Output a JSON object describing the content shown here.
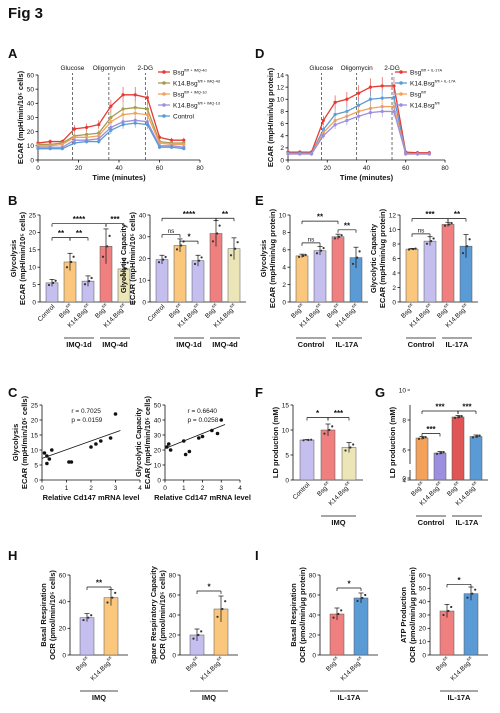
{
  "figure_title": "Fig 3",
  "colors": {
    "red": "#e53935",
    "orange": "#f4a259",
    "olive": "#a39b4f",
    "purple": "#9d8fe0",
    "blue": "#5b9bd5",
    "salmon": "#f08080",
    "khaki": "#ebe5b8",
    "lilac": "#c5bff0",
    "peach": "#fbc77c",
    "darkred": "#e05555",
    "gray": "#9a9a9a",
    "grayblue": "#a8a3c8"
  },
  "chart_data": [
    {
      "id": "A",
      "panel": "A",
      "type": "line",
      "ylabel": "ECAR (mpH/min/10⁵ cells)",
      "xlabel": "Time (minutes)",
      "x": [
        0,
        6,
        12,
        18,
        24,
        30,
        36,
        42,
        48,
        54,
        60,
        66,
        72
      ],
      "xticks": [
        "0",
        "20",
        "40",
        "60",
        "80"
      ],
      "yticks": [
        "0",
        "10",
        "20",
        "30",
        "40",
        "50",
        "60"
      ],
      "xlim": [
        0,
        80
      ],
      "ylim": [
        0,
        60
      ],
      "vlines": [
        {
          "x": 17,
          "label": "Glucose"
        },
        {
          "x": 35,
          "label": "Oligomycin"
        },
        {
          "x": 53,
          "label": "2-DG"
        }
      ],
      "series": [
        {
          "name": "Bsg^fl/fl + IMQ-4d",
          "color": "#e53935",
          "values": [
            12,
            13,
            13,
            22,
            23,
            25,
            38,
            46,
            46,
            44,
            16,
            14,
            14
          ]
        },
        {
          "name": "K14.Bsg^fl/fl + IMQ-4d",
          "color": "#a39b4f",
          "values": [
            11,
            11,
            12,
            17,
            18,
            19,
            30,
            36,
            37,
            36,
            13,
            12,
            12
          ]
        },
        {
          "name": "Bsg^fl/fl + IMQ-1d",
          "color": "#f4a259",
          "values": [
            10,
            10,
            11,
            16,
            16,
            17,
            27,
            32,
            33,
            32,
            12,
            11,
            11
          ]
        },
        {
          "name": "K14.Bsg^fl/fl + IMQ-1d",
          "color": "#9d8fe0",
          "values": [
            9,
            9,
            9,
            14,
            14,
            15,
            23,
            27,
            28,
            27,
            10,
            10,
            9
          ]
        },
        {
          "name": "Control",
          "color": "#5b9bd5",
          "values": [
            8,
            8,
            8,
            12,
            13,
            13,
            21,
            25,
            26,
            25,
            9,
            9,
            8
          ]
        }
      ]
    },
    {
      "id": "D",
      "panel": "D",
      "type": "line",
      "ylabel": "ECAR (mpH/min/ug protein)",
      "xlabel": "Time (minutes)",
      "x": [
        0,
        6,
        12,
        18,
        24,
        30,
        36,
        42,
        48,
        54,
        60,
        66,
        72
      ],
      "xticks": [
        "0",
        "20",
        "40",
        "60",
        "80"
      ],
      "yticks": [
        "0",
        "2",
        "4",
        "6",
        "8",
        "10",
        "12",
        "14"
      ],
      "xlim": [
        0,
        80
      ],
      "ylim": [
        0,
        14
      ],
      "vlines": [
        {
          "x": 17,
          "label": "Glucose"
        },
        {
          "x": 35,
          "label": "Oligomycin"
        },
        {
          "x": 53,
          "label": "2-DG"
        }
      ],
      "series": [
        {
          "name": "Bsg^fl/fl + IL-17A",
          "color": "#e53935",
          "values": [
            1.3,
            1.3,
            1.3,
            6.5,
            9.5,
            10,
            11,
            12,
            12.2,
            12.2,
            1.3,
            1.2,
            1.2
          ]
        },
        {
          "name": "K14.Bsg^fl/fl + IL-17A",
          "color": "#5b9bd5",
          "values": [
            1.1,
            1.1,
            1.1,
            5,
            7.5,
            8,
            9,
            10,
            10.2,
            10.3,
            1.1,
            1,
            1
          ]
        },
        {
          "name": "Bsg^fl/fl",
          "color": "#f4a259",
          "values": [
            1,
            1,
            1,
            4.5,
            6.5,
            7.2,
            8,
            8.5,
            8.8,
            8.8,
            1,
            1,
            1
          ]
        },
        {
          "name": "K14.Bsg^fl/fl",
          "color": "#9d8fe0",
          "values": [
            1,
            1,
            1,
            4,
            5.8,
            6.5,
            7.2,
            7.8,
            8,
            8,
            1,
            1,
            1
          ]
        }
      ]
    },
    {
      "id": "B1",
      "panel": "B",
      "type": "bar",
      "ylabel": "Glycolysis",
      "ylabel2": "ECAR (mpH/min/10⁵ cells)",
      "categories": [
        "Control",
        "Bsg^fl/fl",
        "K14.Bsg^fl/fl",
        "Bsg^fl/fl",
        "K14.Bsg^fl/fl"
      ],
      "values": [
        5.5,
        11.5,
        6,
        16,
        9.5
      ],
      "errors": [
        1,
        2.5,
        1.5,
        5,
        3
      ],
      "colors": [
        "#c5bff0",
        "#fbc77c",
        "#c5bff0",
        "#f08080",
        "#ebe5b8"
      ],
      "yticks": [
        "0",
        "5",
        "10",
        "15",
        "20",
        "25"
      ],
      "ylim": [
        0,
        25
      ],
      "groups": [
        {
          "label": "IMQ-1d",
          "from": 1,
          "to": 2
        },
        {
          "label": "IMQ-4d",
          "from": 3,
          "to": 4
        }
      ],
      "sig": [
        {
          "from": 0,
          "to": 3,
          "label": "****",
          "level": 22.5
        },
        {
          "from": 3,
          "to": 4,
          "label": "***",
          "level": 22.5
        },
        {
          "from": 0,
          "to": 1,
          "label": "**",
          "level": 18.5
        },
        {
          "from": 1,
          "to": 2,
          "label": "**",
          "level": 18.5
        }
      ]
    },
    {
      "id": "B2",
      "panel": "B",
      "type": "bar",
      "ylabel": "Glycolytic Capacity",
      "ylabel2": "ECAR (mpH/min/10⁵ cells)",
      "categories": [
        "Control",
        "Bsg^fl/fl",
        "K14.Bsg^fl/fl",
        "Bsg^fl/fl",
        "K14.Bsg^fl/fl"
      ],
      "values": [
        19.5,
        26,
        19,
        31.5,
        24.5
      ],
      "errors": [
        2,
        3,
        2.5,
        6,
        5
      ],
      "colors": [
        "#c5bff0",
        "#fbc77c",
        "#c5bff0",
        "#f08080",
        "#ebe5b8"
      ],
      "yticks": [
        "0",
        "10",
        "20",
        "30",
        "40"
      ],
      "ylim": [
        0,
        40
      ],
      "groups": [
        {
          "label": "IMQ-1d",
          "from": 1,
          "to": 2
        },
        {
          "label": "IMQ-4d",
          "from": 3,
          "to": 4
        }
      ],
      "sig": [
        {
          "from": 0,
          "to": 3,
          "label": "****",
          "level": 38.5
        },
        {
          "from": 3,
          "to": 4,
          "label": "**",
          "level": 38.5
        },
        {
          "from": 0,
          "to": 1,
          "label": "ns",
          "level": 31
        },
        {
          "from": 1,
          "to": 2,
          "label": "*",
          "level": 28
        }
      ]
    },
    {
      "id": "E1",
      "panel": "E",
      "type": "bar",
      "ylabel": "Glycolysis",
      "ylabel2": "ECAR (mpH/min/ug protein)",
      "categories": [
        "Bsg^fl/fl",
        "K14.Bsg^fl/fl",
        "Bsg^fl/fl",
        "K14.Bsg^fl/fl"
      ],
      "values": [
        5.3,
        5.9,
        7.5,
        5.1
      ],
      "errors": [
        0.2,
        0.5,
        0.3,
        1.2
      ],
      "colors": [
        "#fbc77c",
        "#c5bff0",
        "#f08080",
        "#5b9bd5"
      ],
      "yticks": [
        "0",
        "2",
        "4",
        "6",
        "8",
        "10"
      ],
      "ylim": [
        0,
        10
      ],
      "groups": [
        {
          "label": "Control",
          "from": 0,
          "to": 1
        },
        {
          "label": "IL-17A",
          "from": 2,
          "to": 3
        }
      ],
      "sig": [
        {
          "from": 0,
          "to": 2,
          "label": "**",
          "level": 9.3
        },
        {
          "from": 2,
          "to": 3,
          "label": "**",
          "level": 8.3
        },
        {
          "from": 0,
          "to": 1,
          "label": "ns",
          "level": 6.8
        }
      ]
    },
    {
      "id": "E2",
      "panel": "E",
      "type": "bar",
      "ylabel": "Glycolytic Capacity",
      "ylabel2": "ECAR (mpH/min/ug protein)",
      "categories": [
        "Bsg^fl/fl",
        "K14.Bsg^fl/fl",
        "Bsg^fl/fl",
        "K14.Bsg^fl/fl"
      ],
      "values": [
        7.3,
        8.4,
        10.7,
        7.7
      ],
      "errors": [
        0.1,
        0.6,
        0.3,
        1.6
      ],
      "colors": [
        "#fbc77c",
        "#c5bff0",
        "#f08080",
        "#5b9bd5"
      ],
      "yticks": [
        "0",
        "2",
        "4",
        "6",
        "8",
        "10",
        "12"
      ],
      "ylim": [
        0,
        12
      ],
      "groups": [
        {
          "label": "Control",
          "from": 0,
          "to": 1
        },
        {
          "label": "IL-17A",
          "from": 2,
          "to": 3
        }
      ],
      "sig": [
        {
          "from": 0,
          "to": 2,
          "label": "***",
          "level": 11.5
        },
        {
          "from": 2,
          "to": 3,
          "label": "**",
          "level": 11.5
        },
        {
          "from": 0,
          "to": 1,
          "label": "ns",
          "level": 9.4
        }
      ]
    },
    {
      "id": "C1",
      "panel": "C",
      "type": "scatter",
      "ylabel": "Glycolysis",
      "ylabel2": "ECAR (mpH/min/10⁵ cells)",
      "xlabel": "Relative Cd147 mRNA level",
      "annotation": [
        "r = 0.7025",
        "p = 0.0159"
      ],
      "x": [
        0.1,
        0.2,
        0.3,
        0.2,
        0.4,
        1.1,
        1.2,
        2.0,
        2.2,
        2.4,
        2.8,
        3.0
      ],
      "y": [
        9,
        8,
        7,
        5.5,
        10,
        6,
        6,
        11,
        12,
        13,
        14,
        22
      ],
      "fit": [
        [
          0,
          7.2
        ],
        [
          3.2,
          16.5
        ]
      ],
      "xticks": [
        "0",
        "1",
        "2",
        "3",
        "4"
      ],
      "yticks": [
        "0",
        "5",
        "10",
        "15",
        "20",
        "25"
      ],
      "xlim": [
        0,
        4
      ],
      "ylim": [
        0,
        25
      ]
    },
    {
      "id": "C2",
      "panel": "C",
      "type": "scatter",
      "ylabel": "Glycolytic Capacity",
      "ylabel2": "ECAR (mpH/min/10⁵ cells)",
      "xlabel": "Relative Cd147 mRNA level",
      "annotation": [
        "r = 0.6640",
        "p = 0.0258"
      ],
      "x": [
        0.1,
        0.2,
        0.3,
        1.0,
        1.1,
        1.3,
        1.8,
        2.0,
        2.5,
        2.8,
        3.0
      ],
      "y": [
        22,
        24,
        20,
        26,
        17,
        19,
        28,
        29,
        33,
        31,
        40
      ],
      "fit": [
        [
          0,
          21
        ],
        [
          3.2,
          37
        ]
      ],
      "xticks": [
        "0",
        "1",
        "2",
        "3",
        "4"
      ],
      "yticks": [
        "0",
        "10",
        "20",
        "30",
        "40",
        "50"
      ],
      "xlim": [
        0,
        4
      ],
      "ylim": [
        0,
        50
      ]
    },
    {
      "id": "F",
      "panel": "F",
      "type": "bar",
      "ylabel": "LD production (mM)",
      "categories": [
        "Control",
        "Bsg^fl/fl",
        "K14.Bsg^fl/fl"
      ],
      "values": [
        8,
        10,
        6.5
      ],
      "errors": [
        0.1,
        1.2,
        1
      ],
      "colors": [
        "#c5bff0",
        "#f08080",
        "#ebe5b8"
      ],
      "yticks": [
        "0",
        "5",
        "10",
        "15"
      ],
      "ylim": [
        0,
        15
      ],
      "groups": [
        {
          "label": "IMQ",
          "from": 1,
          "to": 2
        }
      ],
      "sig": [
        {
          "from": 0,
          "to": 1,
          "label": "*",
          "level": 12.5
        },
        {
          "from": 1,
          "to": 2,
          "label": "***",
          "level": 12.5
        }
      ]
    },
    {
      "id": "G",
      "panel": "G",
      "type": "bar",
      "ylabel": "LD production (mM)",
      "categories": [
        "Bsg^fl/fl",
        "K14.Bsg^fl/fl",
        "Bsg^fl/fl",
        "K14.Bsg^fl/fl"
      ],
      "values": [
        6.8,
        5.8,
        8.2,
        6.9
      ],
      "errors": [
        0.1,
        0.1,
        0.1,
        0.1
      ],
      "colors": [
        "#f4a259",
        "#9d8fe0",
        "#e05555",
        "#5b9bd5"
      ],
      "yticks": [
        "0",
        "2",
        "4",
        "6",
        "8",
        "10"
      ],
      "ylim": [
        4,
        9
      ],
      "broken": true,
      "groups": [
        {
          "label": "Control",
          "from": 0,
          "to": 1
        },
        {
          "label": "IL-17A",
          "from": 2,
          "to": 3
        }
      ],
      "sig": [
        {
          "from": 0,
          "to": 2,
          "label": "***",
          "level": 8.6
        },
        {
          "from": 2,
          "to": 3,
          "label": "***",
          "level": 8.6
        },
        {
          "from": 0,
          "to": 1,
          "label": "***",
          "level": 7.1
        }
      ]
    },
    {
      "id": "H1",
      "panel": "H",
      "type": "bar",
      "ylabel": "Basal Respiration",
      "ylabel2": "OCR (pmol/min/10⁵ cells)",
      "categories": [
        "Bsg^fl/fl",
        "K14.Bsg^fl/fl"
      ],
      "values": [
        28,
        43
      ],
      "errors": [
        3,
        6
      ],
      "colors": [
        "#c5bff0",
        "#fbc77c"
      ],
      "yticks": [
        "0",
        "20",
        "40",
        "60"
      ],
      "ylim": [
        0,
        60
      ],
      "groups": [
        {
          "label": "IMQ",
          "from": 0,
          "to": 1
        }
      ],
      "sig": [
        {
          "from": 0,
          "to": 1,
          "label": "**",
          "level": 51
        }
      ]
    },
    {
      "id": "H2",
      "panel": "H",
      "type": "bar",
      "ylabel": "Spare Respiratory Capacity",
      "ylabel2": "OCR (pmol/min/10⁵ cells)",
      "categories": [
        "Bsg^fl/fl",
        "K14.Bsg^fl/fl"
      ],
      "values": [
        20,
        46
      ],
      "errors": [
        6,
        13
      ],
      "colors": [
        "#c5bff0",
        "#fbc77c"
      ],
      "yticks": [
        "0",
        "20",
        "40",
        "60",
        "80"
      ],
      "ylim": [
        0,
        80
      ],
      "groups": [
        {
          "label": "IMQ",
          "from": 0,
          "to": 1
        }
      ],
      "sig": [
        {
          "from": 0,
          "to": 1,
          "label": "*",
          "level": 64
        }
      ]
    },
    {
      "id": "I1",
      "panel": "I",
      "type": "bar",
      "ylabel": "Basal Respiration",
      "ylabel2": "OCR (pmol/min/μg protein)",
      "categories": [
        "Bsg^fl/fl",
        "K14.Bsg^fl/fl"
      ],
      "values": [
        41,
        57
      ],
      "errors": [
        6,
        5
      ],
      "colors": [
        "#f08080",
        "#5b9bd5"
      ],
      "yticks": [
        "0",
        "20",
        "40",
        "60",
        "80"
      ],
      "ylim": [
        0,
        80
      ],
      "groups": [
        {
          "label": "IL-17A",
          "from": 0,
          "to": 1
        }
      ],
      "sig": [
        {
          "from": 0,
          "to": 1,
          "label": "*",
          "level": 67
        }
      ]
    },
    {
      "id": "I2",
      "panel": "I",
      "type": "bar",
      "ylabel": "ATP Production",
      "ylabel2": "OCR (pmol/min/μg protein)",
      "categories": [
        "Bsg^fl/fl",
        "K14.Bsg^fl/fl"
      ],
      "values": [
        33,
        46
      ],
      "errors": [
        5,
        5
      ],
      "colors": [
        "#f08080",
        "#5b9bd5"
      ],
      "yticks": [
        "0",
        "10",
        "20",
        "30",
        "40",
        "50",
        "60"
      ],
      "ylim": [
        0,
        60
      ],
      "groups": [
        {
          "label": "IL-17A",
          "from": 0,
          "to": 1
        }
      ],
      "sig": [
        {
          "from": 0,
          "to": 1,
          "label": "*",
          "level": 53
        }
      ]
    }
  ]
}
